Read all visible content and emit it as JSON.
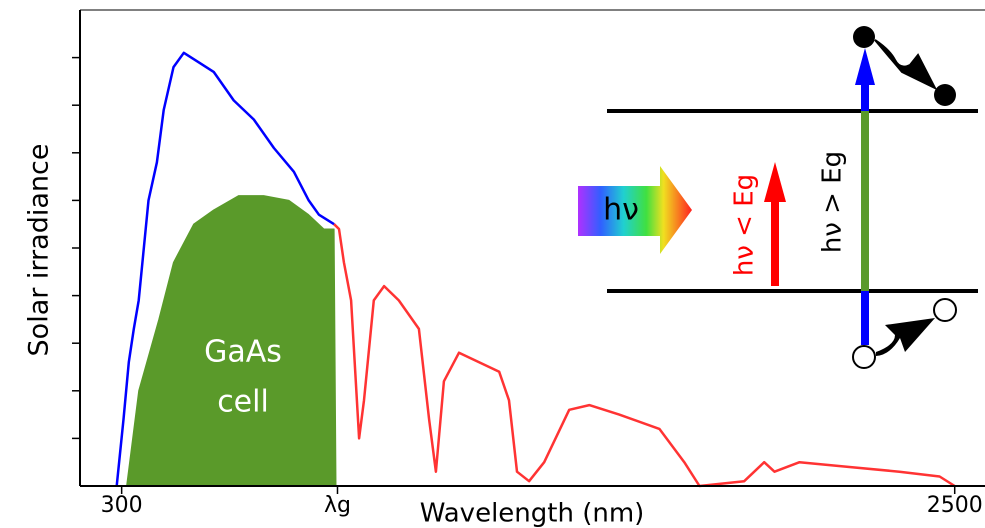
{
  "chart_data": {
    "type": "line",
    "y_label": "Solar irradiance",
    "x_label": "Wavelength (nm)",
    "xlim": [
      190,
      2580
    ],
    "ylim": [
      0,
      100
    ],
    "xticks": [
      300,
      {
        "value": 870,
        "label": "λg"
      },
      2500
    ],
    "yticks": [
      10,
      20,
      30,
      40,
      50,
      60,
      70,
      80,
      90
    ],
    "series": [
      {
        "color": "#0000ff",
        "x": [
          287,
          305,
          319,
          332,
          345,
          371,
          393,
          411,
          437,
          464,
          504,
          543,
          596,
          649,
          702,
          755,
          794,
          821,
          861
        ],
        "values": [
          0,
          14,
          26,
          33,
          39,
          60,
          68,
          79,
          88,
          91,
          89,
          87,
          81,
          77,
          71,
          66,
          60,
          57,
          55
        ]
      },
      {
        "color": "#ff3333",
        "x": [
          861,
          874,
          887,
          906,
          927,
          940,
          966,
          993,
          1032,
          1085,
          1112,
          1130,
          1151,
          1191,
          1244,
          1297,
          1323,
          1344,
          1376,
          1416,
          1482,
          1535,
          1614,
          1720,
          1786,
          1826,
          1944,
          1997,
          2024,
          2090,
          2222,
          2354,
          2460,
          2500
        ],
        "values": [
          55,
          54,
          47,
          39,
          10,
          18,
          39,
          42,
          39,
          33,
          14,
          3,
          22,
          28,
          26,
          24,
          18,
          3,
          1,
          5,
          16,
          17,
          15,
          12,
          5,
          0,
          1,
          5,
          3,
          5,
          4,
          3,
          2,
          0
        ]
      },
      {
        "color": "#5a9a2a",
        "area": true,
        "x": [
          313,
          345,
          398,
          437,
          490,
          543,
          609,
          675,
          742,
          794,
          834,
          861,
          866
        ],
        "values": [
          0,
          20,
          35,
          47,
          55,
          58,
          61,
          61,
          60,
          57,
          54,
          54,
          0
        ]
      }
    ],
    "annotation_lines": [
      "GaAs",
      "cell"
    ],
    "inset": {
      "photon": "hν",
      "below_gap": "hν < Eg",
      "above_gap": "hν > Eg"
    }
  }
}
